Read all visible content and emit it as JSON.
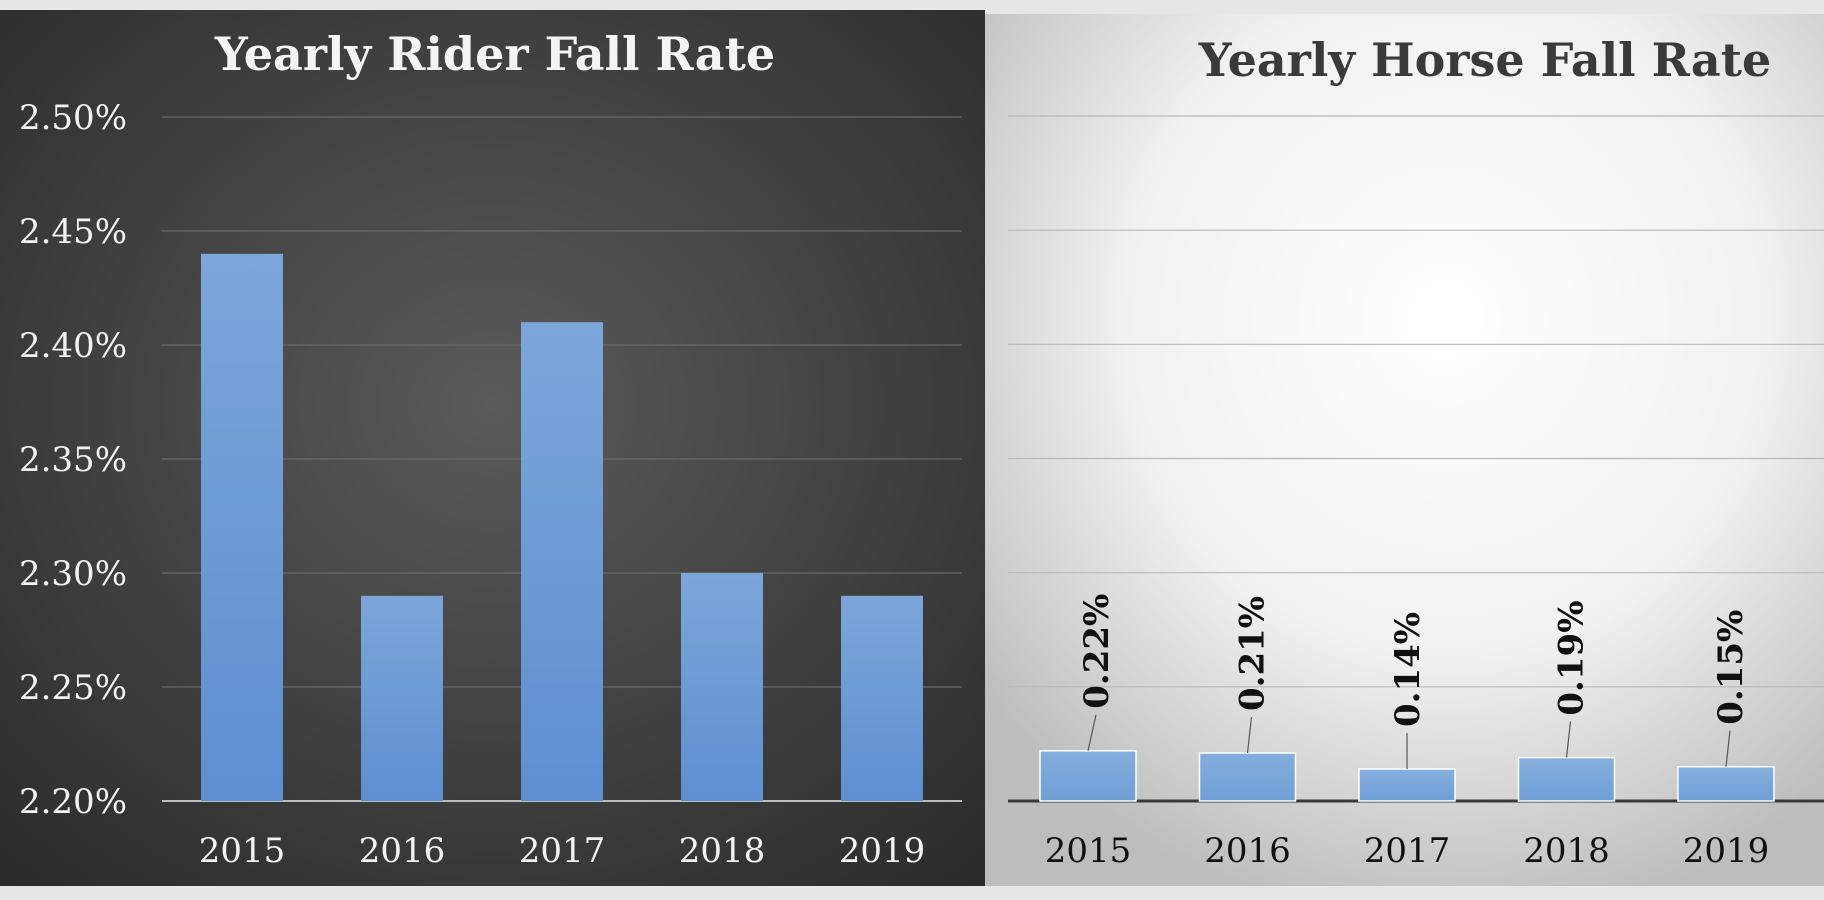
{
  "chart_data": [
    {
      "type": "bar",
      "title": "Yearly Rider Fall Rate",
      "categories": [
        "2015",
        "2016",
        "2017",
        "2018",
        "2019"
      ],
      "values": [
        2.44,
        2.29,
        2.41,
        2.3,
        2.29
      ],
      "unit": "%",
      "xlabel": "",
      "ylabel": "",
      "ylim": [
        2.2,
        2.5
      ],
      "yticks": [
        "2.20%",
        "2.25%",
        "2.30%",
        "2.35%",
        "2.40%",
        "2.45%",
        "2.50%"
      ],
      "ytick_values": [
        2.2,
        2.25,
        2.3,
        2.35,
        2.4,
        2.45,
        2.5
      ],
      "grid": true,
      "data_labels": false,
      "colors": {
        "background": "#3c3c3c",
        "bar": "#6f9fd8",
        "text": "#f2f2f2",
        "grid": "#6a6a6a"
      }
    },
    {
      "type": "bar",
      "title": "Yearly Horse Fall Rate",
      "categories": [
        "2015",
        "2016",
        "2017",
        "2018",
        "2019"
      ],
      "values": [
        0.22,
        0.21,
        0.14,
        0.19,
        0.15
      ],
      "value_labels": [
        "0.22%",
        "0.21%",
        "0.14%",
        "0.19%",
        "0.15%"
      ],
      "unit": "%",
      "xlabel": "",
      "ylabel": "",
      "ylim": [
        0,
        3.0
      ],
      "grid": true,
      "data_labels": true,
      "colors": {
        "background": "#f4f4f4",
        "bar": "#7ba6d9",
        "text": "#222222",
        "grid": "#b8b8b8"
      }
    }
  ]
}
